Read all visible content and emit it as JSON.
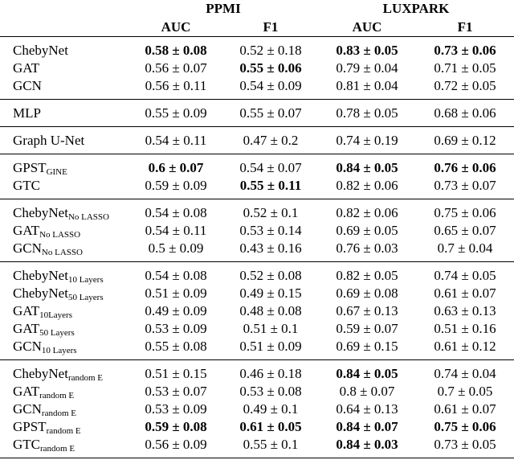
{
  "table": {
    "datasets": [
      {
        "name": "PPMI",
        "metrics": [
          "AUC",
          "F1"
        ]
      },
      {
        "name": "LUXPARK",
        "metrics": [
          "AUC",
          "F1"
        ]
      }
    ],
    "groups": [
      [
        {
          "model": "ChebyNet",
          "cells": [
            "0.58 ± 0.08",
            "0.52 ± 0.18",
            "0.83 ± 0.05",
            "0.73 ± 0.06"
          ],
          "bold": [
            true,
            false,
            true,
            true
          ]
        },
        {
          "model": "GAT",
          "cells": [
            "0.56 ± 0.07",
            "0.55 ± 0.06",
            "0.79 ± 0.04",
            "0.71 ± 0.05"
          ],
          "bold": [
            false,
            true,
            false,
            false
          ]
        },
        {
          "model": "GCN",
          "cells": [
            "0.56 ± 0.11",
            "0.54 ± 0.09",
            "0.81 ± 0.04",
            "0.72 ± 0.05"
          ],
          "bold": [
            false,
            false,
            false,
            false
          ]
        }
      ],
      [
        {
          "model": "MLP",
          "cells": [
            "0.55 ± 0.09",
            "0.55 ± 0.07",
            "0.78 ± 0.05",
            "0.68 ± 0.06"
          ],
          "bold": [
            false,
            false,
            false,
            false
          ]
        }
      ],
      [
        {
          "model": "Graph U-Net",
          "cells": [
            "0.54 ± 0.11",
            "0.47 ± 0.2",
            "0.74 ± 0.19",
            "0.69 ± 0.12"
          ],
          "bold": [
            false,
            false,
            false,
            false
          ]
        }
      ],
      [
        {
          "model": "GPST",
          "sub": "GINE",
          "cells": [
            "0.6 ± 0.07",
            "0.54 ± 0.07",
            "0.84 ± 0.05",
            "0.76 ± 0.06"
          ],
          "bold": [
            true,
            false,
            true,
            true
          ]
        },
        {
          "model": "GTC",
          "cells": [
            "0.59 ± 0.09",
            "0.55 ± 0.11",
            "0.82 ± 0.06",
            "0.73 ± 0.07"
          ],
          "bold": [
            false,
            true,
            false,
            false
          ]
        }
      ],
      [
        {
          "model": "ChebyNet",
          "sub": "No LASSO",
          "cells": [
            "0.54 ± 0.08",
            "0.52 ± 0.1",
            "0.82 ± 0.06",
            "0.75 ± 0.06"
          ],
          "bold": [
            false,
            false,
            false,
            false
          ]
        },
        {
          "model": "GAT",
          "sub": "No LASSO",
          "cells": [
            "0.54 ± 0.11",
            "0.53 ± 0.14",
            "0.69 ± 0.05",
            "0.65 ± 0.07"
          ],
          "bold": [
            false,
            false,
            false,
            false
          ]
        },
        {
          "model": "GCN",
          "sub": "No LASSO",
          "cells": [
            "0.5 ± 0.09",
            "0.43 ± 0.16",
            "0.76 ± 0.03",
            "0.7 ± 0.04"
          ],
          "bold": [
            false,
            false,
            false,
            false
          ]
        }
      ],
      [
        {
          "model": "ChebyNet",
          "sub": "10 Layers",
          "cells": [
            "0.54 ± 0.08",
            "0.52 ± 0.08",
            "0.82 ± 0.05",
            "0.74 ± 0.05"
          ],
          "bold": [
            false,
            false,
            false,
            false
          ]
        },
        {
          "model": "ChebyNet",
          "sub": "50 Layers",
          "cells": [
            "0.51 ± 0.09",
            "0.49 ± 0.15",
            "0.69 ± 0.08",
            "0.61 ± 0.07"
          ],
          "bold": [
            false,
            false,
            false,
            false
          ]
        },
        {
          "model": "GAT",
          "sub": "10Layers",
          "cells": [
            "0.49 ± 0.09",
            "0.48 ± 0.08",
            "0.67 ± 0.13",
            "0.63 ± 0.13"
          ],
          "bold": [
            false,
            false,
            false,
            false
          ]
        },
        {
          "model": "GAT",
          "sub": "50 Layers",
          "cells": [
            "0.53 ± 0.09",
            "0.51 ± 0.1",
            "0.59 ± 0.07",
            "0.51 ± 0.16"
          ],
          "bold": [
            false,
            false,
            false,
            false
          ]
        },
        {
          "model": "GCN",
          "sub": "10 Layers",
          "cells": [
            "0.55 ± 0.08",
            "0.51 ± 0.09",
            "0.69 ± 0.15",
            "0.61 ± 0.12"
          ],
          "bold": [
            false,
            false,
            false,
            false
          ]
        }
      ],
      [
        {
          "model": "ChebyNet",
          "sub": "random E",
          "cells": [
            "0.51 ± 0.15",
            "0.46 ± 0.18",
            "0.84 ± 0.05",
            "0.74 ± 0.04"
          ],
          "bold": [
            false,
            false,
            true,
            false
          ]
        },
        {
          "model": "GAT",
          "sub": "random E",
          "cells": [
            "0.53 ± 0.07",
            "0.53 ± 0.08",
            "0.8 ± 0.07",
            "0.7 ± 0.05"
          ],
          "bold": [
            false,
            false,
            false,
            false
          ]
        },
        {
          "model": "GCN",
          "sub": "random E",
          "cells": [
            "0.53 ± 0.09",
            "0.49 ± 0.1",
            "0.64 ± 0.13",
            "0.61 ± 0.07"
          ],
          "bold": [
            false,
            false,
            false,
            false
          ]
        },
        {
          "model": "GPST",
          "sub": "random E",
          "cells": [
            "0.59 ± 0.08",
            "0.61 ± 0.05",
            "0.84 ± 0.07",
            "0.75 ± 0.06"
          ],
          "bold": [
            true,
            true,
            true,
            true
          ]
        },
        {
          "model": "GTC",
          "sub": "random E",
          "cells": [
            "0.56 ± 0.09",
            "0.55 ± 0.1",
            "0.84 ± 0.03",
            "0.73 ± 0.05"
          ],
          "bold": [
            false,
            false,
            true,
            false
          ]
        }
      ]
    ]
  }
}
